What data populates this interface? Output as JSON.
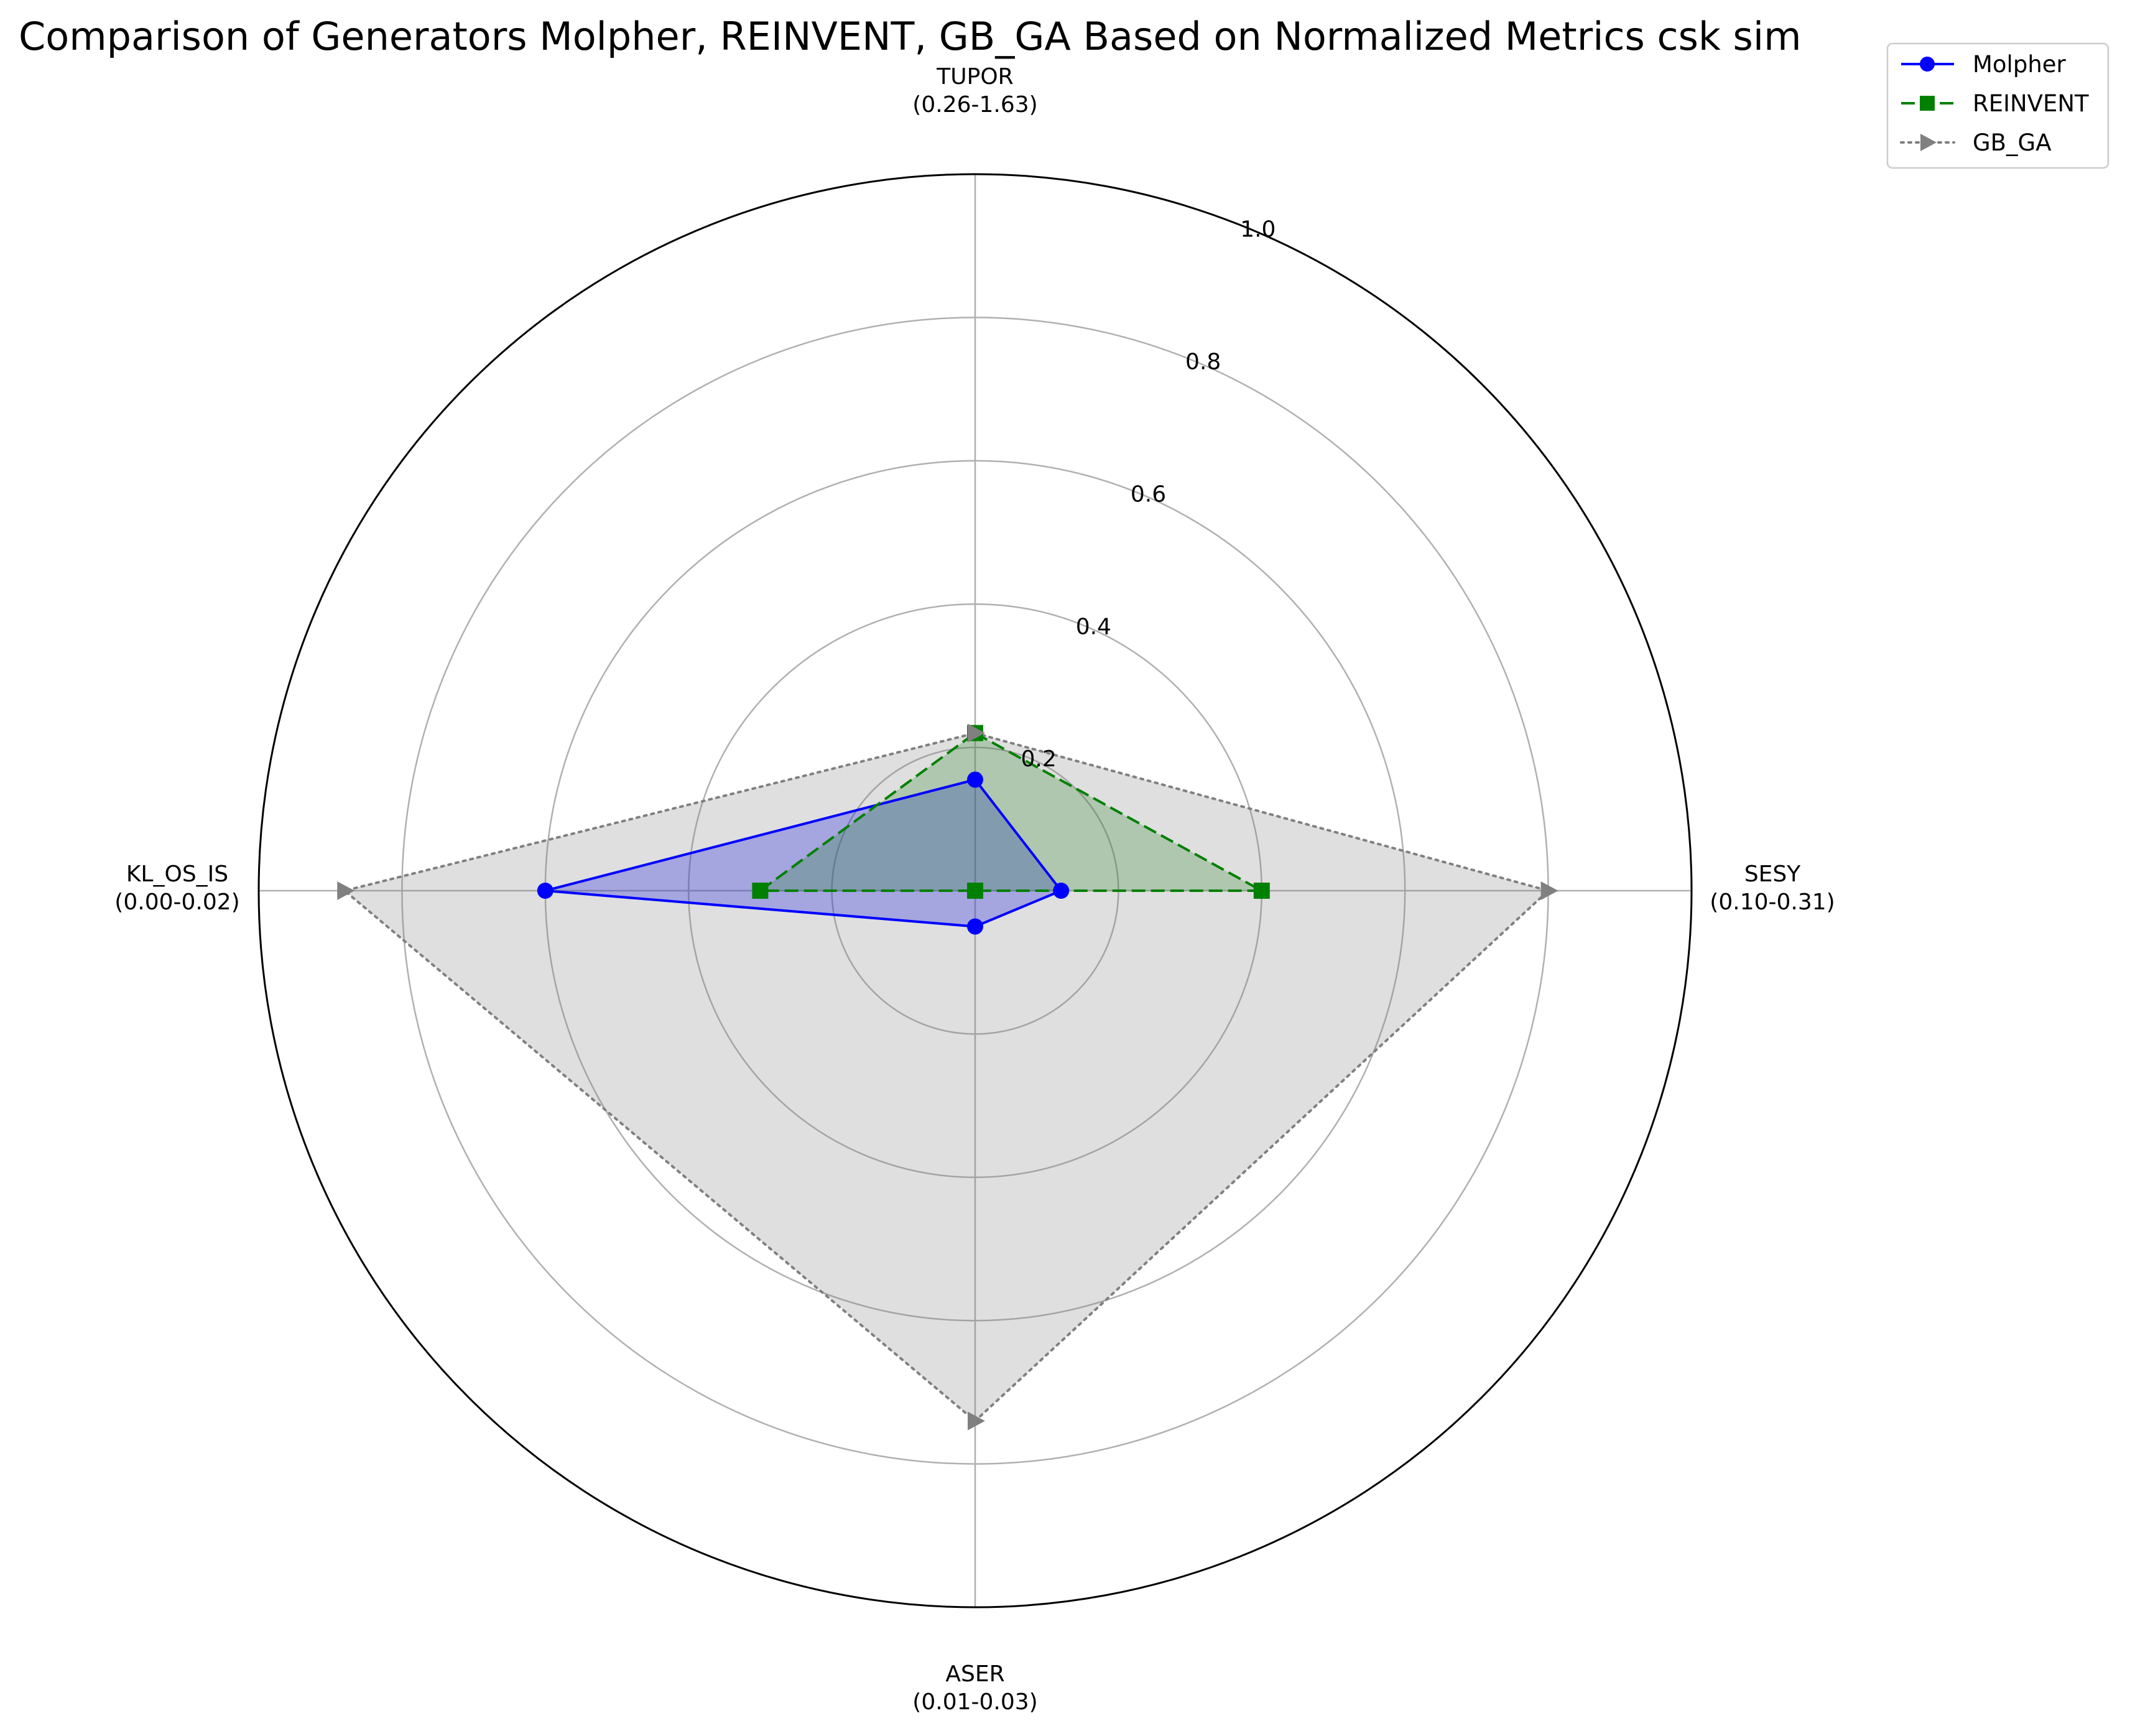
{
  "chart_data": {
    "type": "radar",
    "title": "Comparison of Generators Molpher, REINVENT, GB_GA Based on Normalized Metrics csk sim",
    "axes": [
      {
        "name": "TUPOR",
        "range": "(0.26-1.63)"
      },
      {
        "name": "SESY",
        "range": "(0.10-0.31)"
      },
      {
        "name": "ASER",
        "range": "(0.01-0.03)"
      },
      {
        "name": "KL_OS_IS",
        "range": "(0.00-0.02)"
      }
    ],
    "rlim": [
      0,
      1.0
    ],
    "rticks": [
      0.2,
      0.4,
      0.6,
      0.8,
      1.0
    ],
    "rtick_labels": [
      "0.2",
      "0.4",
      "0.6",
      "0.8",
      "1.0"
    ],
    "grid": true,
    "legend_position": "top-right",
    "series": [
      {
        "name": "Molpher",
        "values": [
          0.155,
          0.12,
          0.05,
          0.6
        ],
        "color": "#0000ff",
        "marker": "circle",
        "line": "solid"
      },
      {
        "name": "REINVENT",
        "values": [
          0.22,
          0.4,
          0.0,
          0.3
        ],
        "color": "#008000",
        "marker": "square",
        "line": "dashed"
      },
      {
        "name": "GB_GA",
        "values": [
          0.22,
          0.8,
          0.74,
          0.88
        ],
        "color": "#808080",
        "marker": "triangle-right",
        "line": "dotted"
      }
    ]
  }
}
